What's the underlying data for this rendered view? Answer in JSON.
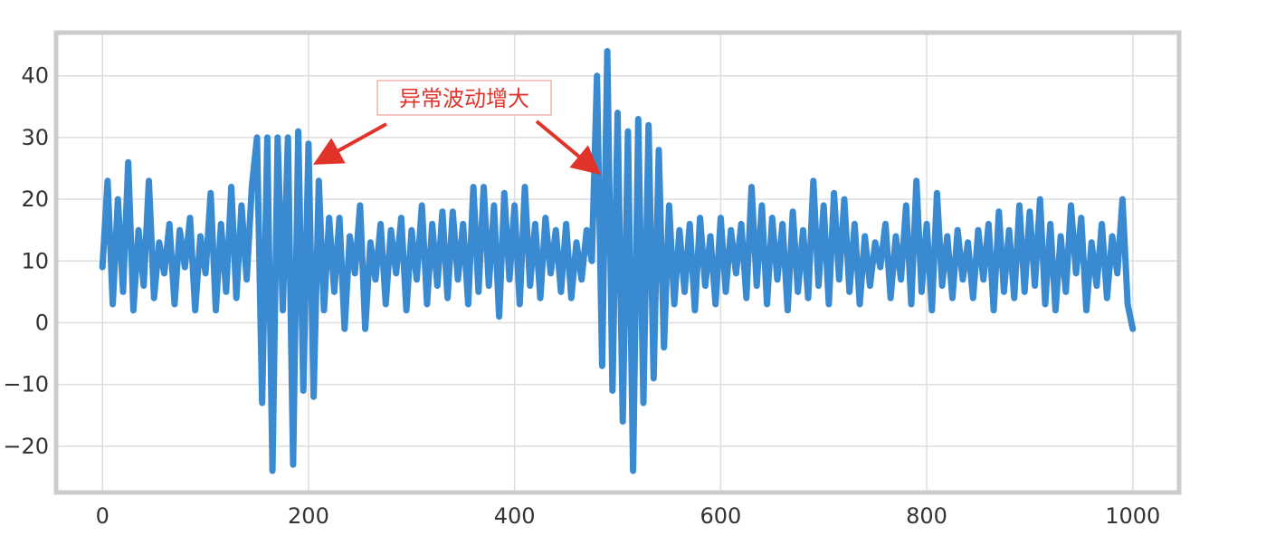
{
  "chart_data": {
    "type": "line",
    "title": "",
    "xlabel": "",
    "ylabel": "",
    "xlim": [
      -45,
      1045
    ],
    "ylim": [
      -27.5,
      47
    ],
    "x_ticks": [
      0,
      200,
      400,
      600,
      800,
      1000
    ],
    "y_ticks": [
      -20,
      -10,
      0,
      10,
      20,
      30,
      40
    ],
    "grid": true,
    "series": [
      {
        "color": "#3a8ad2",
        "x": [
          0,
          5,
          10,
          15,
          20,
          25,
          30,
          35,
          40,
          45,
          50,
          55,
          60,
          65,
          70,
          75,
          80,
          85,
          90,
          95,
          100,
          105,
          110,
          115,
          120,
          125,
          130,
          135,
          140,
          145,
          150,
          155,
          160,
          165,
          170,
          175,
          180,
          185,
          190,
          195,
          200,
          205,
          210,
          215,
          220,
          225,
          230,
          235,
          240,
          245,
          250,
          255,
          260,
          265,
          270,
          275,
          280,
          285,
          290,
          295,
          300,
          305,
          310,
          315,
          320,
          325,
          330,
          335,
          340,
          345,
          350,
          355,
          360,
          365,
          370,
          375,
          380,
          385,
          390,
          395,
          400,
          405,
          410,
          415,
          420,
          425,
          430,
          435,
          440,
          445,
          450,
          455,
          460,
          465,
          470,
          475,
          480,
          485,
          490,
          495,
          500,
          505,
          510,
          515,
          520,
          525,
          530,
          535,
          540,
          545,
          550,
          555,
          560,
          565,
          570,
          575,
          580,
          585,
          590,
          595,
          600,
          605,
          610,
          615,
          620,
          625,
          630,
          635,
          640,
          645,
          650,
          655,
          660,
          665,
          670,
          675,
          680,
          685,
          690,
          695,
          700,
          705,
          710,
          715,
          720,
          725,
          730,
          735,
          740,
          745,
          750,
          755,
          760,
          765,
          770,
          775,
          780,
          785,
          790,
          795,
          800,
          805,
          810,
          815,
          820,
          825,
          830,
          835,
          840,
          845,
          850,
          855,
          860,
          865,
          870,
          875,
          880,
          885,
          890,
          895,
          900,
          905,
          910,
          915,
          920,
          925,
          930,
          935,
          940,
          945,
          950,
          955,
          960,
          965,
          970,
          975,
          980,
          985,
          990,
          995,
          1000
        ],
        "y": [
          9,
          23,
          3,
          20,
          5,
          26,
          2,
          15,
          6,
          23,
          4,
          13,
          8,
          16,
          3,
          15,
          9,
          17,
          2,
          14,
          8,
          21,
          2,
          16,
          5,
          22,
          4,
          19,
          7,
          22,
          30,
          -13,
          30,
          -24,
          30,
          2,
          30,
          -23,
          31,
          -11,
          29,
          -12,
          23,
          2,
          17,
          5,
          17,
          -1,
          14,
          8,
          19,
          -1,
          13,
          7,
          16,
          3,
          15,
          8,
          17,
          2,
          15,
          7,
          19,
          3,
          16,
          6,
          18,
          4,
          18,
          7,
          16,
          3,
          22,
          5,
          22,
          6,
          19,
          1,
          21,
          7,
          19,
          3,
          22,
          6,
          16,
          4,
          17,
          8,
          15,
          5,
          16,
          4,
          13,
          7,
          15,
          10,
          40,
          -7,
          44,
          -11,
          34,
          -16,
          31,
          -24,
          33,
          -13,
          32,
          -9,
          28,
          -4,
          19,
          3,
          15,
          5,
          16,
          2,
          17,
          6,
          14,
          3,
          17,
          5,
          15,
          8,
          16,
          4,
          22,
          6,
          19,
          3,
          17,
          7,
          16,
          2,
          18,
          5,
          15,
          4,
          23,
          6,
          19,
          3,
          21,
          7,
          20,
          5,
          16,
          3,
          14,
          6,
          13,
          9,
          16,
          4,
          14,
          7,
          19,
          3,
          23,
          5,
          16,
          2,
          21,
          6,
          14,
          4,
          15,
          7,
          13,
          4,
          15,
          7,
          16,
          2,
          18,
          5,
          15,
          4,
          19,
          5,
          18,
          6,
          20,
          3,
          16,
          2,
          14,
          5,
          19,
          8,
          17,
          2,
          13,
          6,
          16,
          4,
          14,
          8,
          20,
          3,
          -1
        ],
        "width": 7
      }
    ],
    "annotations": [
      {
        "text": "异常波动增大",
        "arrows_to_x": [
          205,
          482
        ]
      }
    ]
  }
}
